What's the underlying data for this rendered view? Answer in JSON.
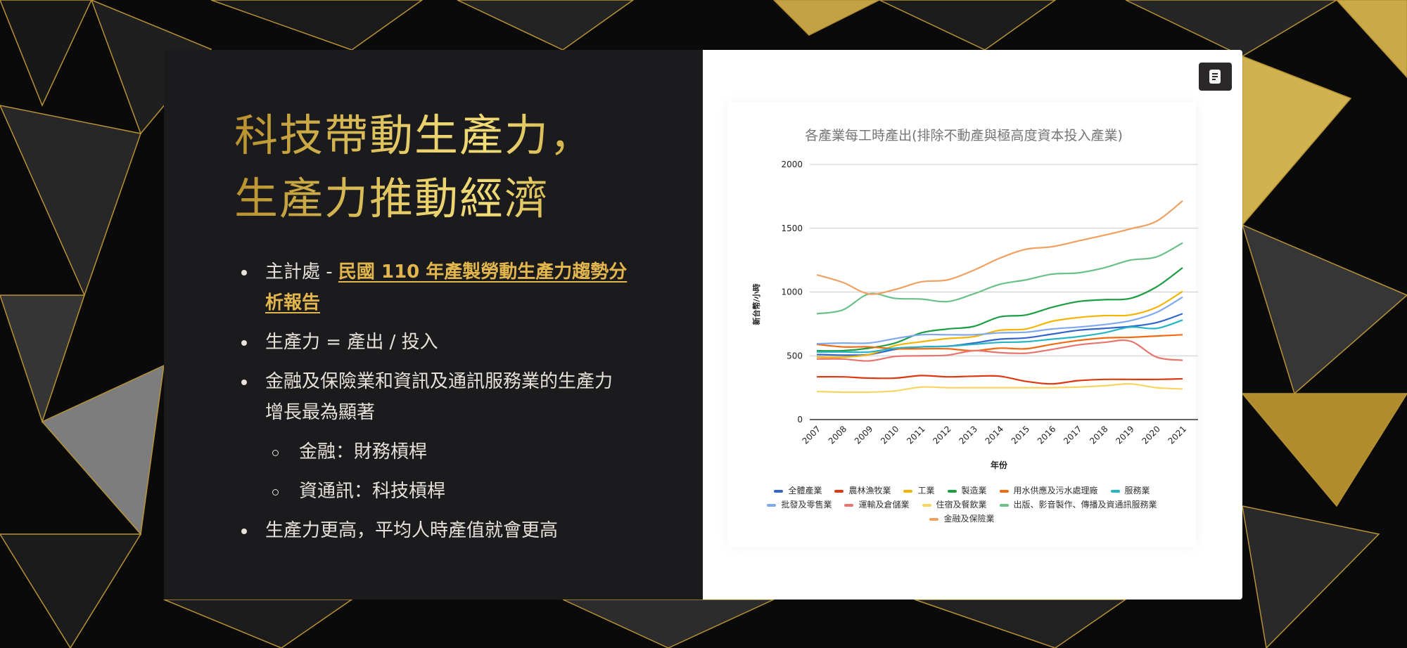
{
  "slide": {
    "title_line1": "科技帶動生產力，",
    "title_line2": "生產力推動經濟",
    "bullets": {
      "b1_prefix": "主計處 - ",
      "b1_link": "民國 110 年產製勞動生產力趨勢分析報告",
      "b2": "生產力 = 產出 / 投入",
      "b3": "金融及保險業和資訊及通訊服務業的生產力增長最為顯著",
      "b3_sub1": "金融：財務槓桿",
      "b3_sub2": "資通訊：科技槓桿",
      "b4": "生產力更高，平均人時產值就會更高"
    },
    "accent_color": "#e2b64c",
    "chart_button_icon": "document-icon"
  },
  "chart_data": {
    "type": "line",
    "title": "各產業每工時產出(排除不動產與極高度資本投入產業)",
    "xlabel": "年份",
    "ylabel": "新台幣/小時",
    "ylim": [
      0,
      2000
    ],
    "yticks": [
      "0",
      "500",
      "1000",
      "1500",
      "2000"
    ],
    "grid": true,
    "legend_position": "bottom",
    "categories": [
      "2007",
      "2008",
      "2009",
      "2010",
      "2011",
      "2012",
      "2013",
      "2014",
      "2015",
      "2016",
      "2017",
      "2018",
      "2019",
      "2020",
      "2021"
    ],
    "series": [
      {
        "name": "全體產業",
        "color": "#3366cc",
        "values": [
          510,
          505,
          510,
          550,
          570,
          575,
          600,
          630,
          640,
          670,
          700,
          715,
          730,
          760,
          830
        ]
      },
      {
        "name": "農林漁牧業",
        "color": "#dc3912",
        "values": [
          335,
          335,
          325,
          325,
          345,
          335,
          340,
          340,
          300,
          280,
          305,
          315,
          315,
          315,
          320
        ]
      },
      {
        "name": "工業",
        "color": "#f4b400",
        "values": [
          490,
          490,
          510,
          580,
          610,
          635,
          650,
          700,
          710,
          770,
          800,
          815,
          820,
          880,
          1005
        ]
      },
      {
        "name": "製造業",
        "color": "#1e9e44",
        "values": [
          540,
          540,
          560,
          600,
          680,
          710,
          730,
          805,
          820,
          880,
          925,
          940,
          950,
          1040,
          1190
        ]
      },
      {
        "name": "用水供應及污水處理廠",
        "color": "#f06a10",
        "values": [
          590,
          570,
          570,
          555,
          555,
          555,
          540,
          560,
          555,
          590,
          620,
          640,
          645,
          655,
          665
        ]
      },
      {
        "name": "服務業",
        "color": "#26b5c4",
        "values": [
          530,
          530,
          530,
          560,
          570,
          575,
          590,
          605,
          610,
          630,
          650,
          680,
          725,
          715,
          780
        ]
      },
      {
        "name": "批發及零售業",
        "color": "#80a8f0",
        "values": [
          595,
          600,
          600,
          635,
          665,
          665,
          665,
          680,
          685,
          710,
          725,
          745,
          775,
          840,
          960
        ]
      },
      {
        "name": "運輸及倉儲業",
        "color": "#e8746e",
        "values": [
          475,
          475,
          460,
          495,
          500,
          505,
          540,
          525,
          520,
          550,
          585,
          605,
          615,
          490,
          465
        ]
      },
      {
        "name": "住宿及餐飲業",
        "color": "#f7d560",
        "values": [
          220,
          215,
          215,
          225,
          255,
          250,
          250,
          250,
          250,
          250,
          255,
          265,
          280,
          250,
          240
        ]
      },
      {
        "name": "出版、影音製作、傳播及資通訊服務業",
        "color": "#6cc08a",
        "values": [
          830,
          860,
          985,
          950,
          945,
          925,
          985,
          1060,
          1095,
          1140,
          1150,
          1190,
          1250,
          1275,
          1385
        ]
      },
      {
        "name": "金融及保險業",
        "color": "#f0a060",
        "values": [
          1135,
          1075,
          985,
          1020,
          1080,
          1095,
          1170,
          1265,
          1335,
          1355,
          1400,
          1445,
          1495,
          1555,
          1715
        ]
      }
    ]
  }
}
